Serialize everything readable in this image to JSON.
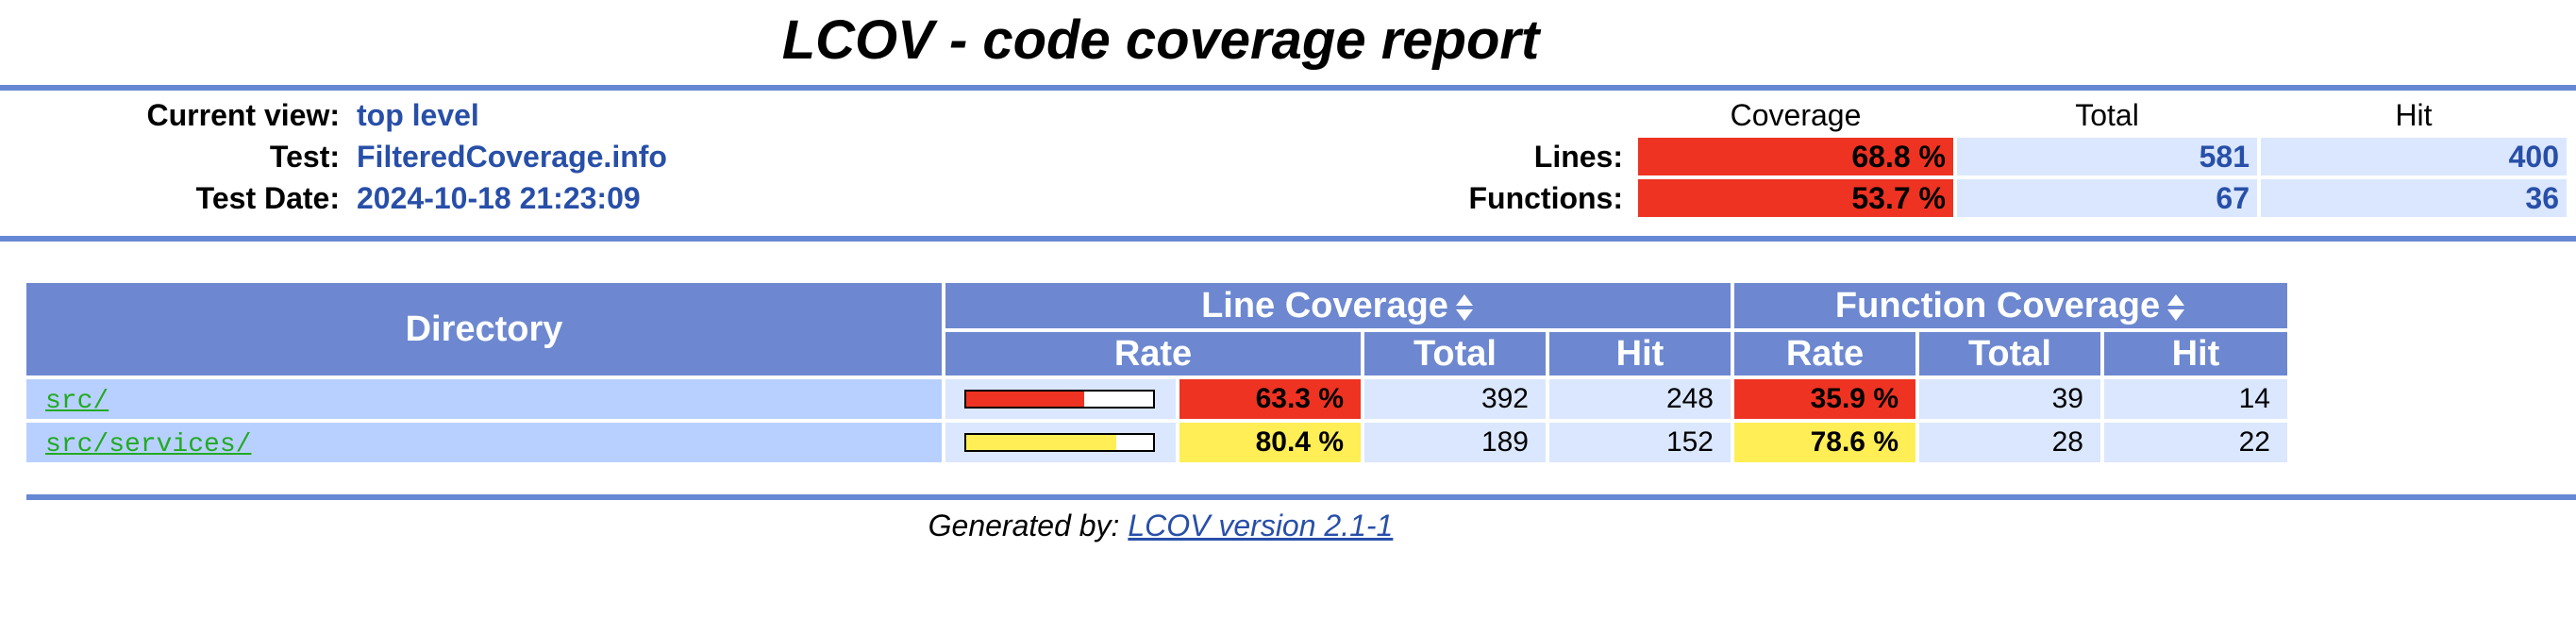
{
  "title": "LCOV - code coverage report",
  "info": {
    "current_view_label": "Current view:",
    "current_view_value": "top level",
    "test_label": "Test:",
    "test_value": "FilteredCoverage.info",
    "test_date_label": "Test Date:",
    "test_date_value": "2024-10-18 21:23:09"
  },
  "summary": {
    "headers": {
      "coverage": "Coverage",
      "total": "Total",
      "hit": "Hit"
    },
    "lines": {
      "label": "Lines:",
      "coverage": "68.8 %",
      "total": "581",
      "hit": "400"
    },
    "functions": {
      "label": "Functions:",
      "coverage": "53.7 %",
      "total": "67",
      "hit": "36"
    }
  },
  "table": {
    "directory_header": "Directory",
    "line_coverage_header": "Line Coverage",
    "function_coverage_header": "Function Coverage",
    "rate_header": "Rate",
    "total_header": "Total",
    "hit_header": "Hit",
    "rows": [
      {
        "directory": "src/",
        "line_bar_fraction": 0.633,
        "line_bar_color": "#ee3322",
        "line_rate": "63.3 %",
        "line_rate_color": "#ee3322",
        "line_total": "392",
        "line_hit": "248",
        "func_rate": "35.9 %",
        "func_rate_color": "#ee3322",
        "func_total": "39",
        "func_hit": "14"
      },
      {
        "directory": "src/services/",
        "line_bar_fraction": 0.804,
        "line_bar_color": "#ffee55",
        "line_rate": "80.4 %",
        "line_rate_color": "#ffee55",
        "line_total": "189",
        "line_hit": "152",
        "func_rate": "78.6 %",
        "func_rate_color": "#ffee55",
        "func_total": "28",
        "func_hit": "22"
      }
    ]
  },
  "footer": {
    "generated_by": "Generated by:",
    "link_text": "LCOV version 2.1-1"
  },
  "colors": {
    "ruler": "#6688d4",
    "header_bg": "#6d88d0",
    "dir_bg": "#b8d0ff",
    "num_bg": "#dae7fe",
    "low": "#ee3322",
    "medium": "#ffee55",
    "link_blue": "#284fa8",
    "dir_link_green": "#22aa22"
  },
  "icons": {
    "sort": "sort-updown-icon"
  }
}
